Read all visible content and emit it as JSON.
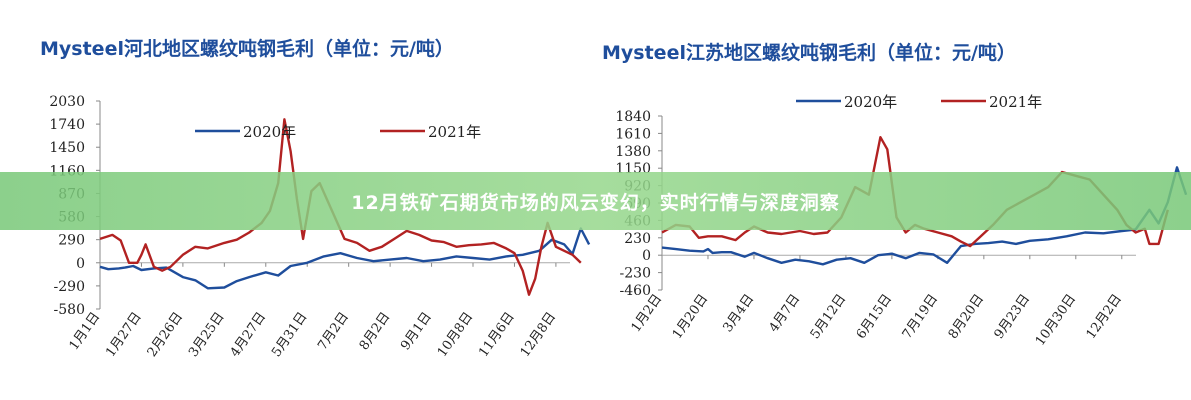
{
  "banner": {
    "text": "12月铁矿石期货市场的风云变幻，实时行情与深度洞察"
  },
  "chart_data": [
    {
      "type": "line",
      "title": "Mysteel河北地区螺纹吨钢毛利（单位：元/吨）",
      "yticks": [
        2030,
        1740,
        1450,
        1160,
        870,
        580,
        290,
        0,
        -290,
        -580
      ],
      "ylim": [
        -580,
        2030
      ],
      "xticks": [
        "1月1日",
        "1月27日",
        "2月26日",
        "3月25日",
        "4月27日",
        "5月31日",
        "7月2日",
        "8月2日",
        "9月1日",
        "10月8日",
        "11月6日",
        "12月8日"
      ],
      "legend_position": "top",
      "series": [
        {
          "name": "2020年",
          "color": "#1f4e9c",
          "x": [
            0,
            0.2,
            0.45,
            0.6,
            0.8,
            1,
            1.3,
            1.6,
            1.8,
            2,
            2.3,
            2.6,
            3,
            3.3,
            3.6,
            4,
            4.3,
            4.6,
            5,
            5.4,
            5.8,
            6.2,
            6.6,
            7,
            7.4,
            7.8,
            8.2,
            8.6,
            9,
            9.4,
            9.8,
            10.2,
            10.6,
            10.9,
            11.2,
            11.4,
            11.6,
            11.8
          ],
          "y": [
            -50,
            -80,
            -70,
            -60,
            -40,
            -90,
            -70,
            -60,
            -120,
            -180,
            -220,
            -320,
            -310,
            -230,
            -180,
            -120,
            -160,
            -40,
            0,
            80,
            120,
            60,
            20,
            40,
            60,
            20,
            40,
            80,
            60,
            40,
            80,
            100,
            150,
            290,
            230,
            110,
            430,
            230
          ]
        },
        {
          "name": "2021年",
          "color": "#b22222",
          "x": [
            0,
            0.3,
            0.5,
            0.7,
            0.9,
            1,
            1.1,
            1.3,
            1.5,
            1.7,
            2,
            2.3,
            2.6,
            3,
            3.3,
            3.6,
            3.9,
            4.1,
            4.3,
            4.45,
            4.6,
            4.75,
            4.9,
            5.1,
            5.3,
            5.6,
            5.9,
            6.2,
            6.5,
            6.8,
            7.1,
            7.4,
            7.7,
            8,
            8.3,
            8.6,
            8.9,
            9.2,
            9.5,
            9.8,
            10,
            10.2,
            10.35,
            10.5,
            10.65,
            10.8,
            11,
            11.2,
            11.4,
            11.6
          ],
          "y": [
            300,
            350,
            280,
            0,
            0,
            100,
            230,
            -50,
            -100,
            -50,
            100,
            200,
            180,
            250,
            290,
            380,
            500,
            650,
            1000,
            1800,
            1400,
            800,
            300,
            900,
            1000,
            650,
            300,
            250,
            150,
            200,
            300,
            400,
            350,
            280,
            260,
            200,
            220,
            230,
            250,
            180,
            120,
            -100,
            -400,
            -200,
            200,
            500,
            200,
            150,
            100,
            0
          ]
        }
      ]
    },
    {
      "type": "line",
      "title": "Mysteel江苏地区螺纹吨钢毛利（单位：元/吨）",
      "yticks": [
        1840,
        1610,
        1380,
        1150,
        920,
        690,
        460,
        230,
        0,
        -230,
        -460
      ],
      "ylim": [
        -460,
        1840
      ],
      "xticks": [
        "1月2日",
        "1月20日",
        "3月4日",
        "4月7日",
        "5月12日",
        "6月15日",
        "7月19日",
        "8月20日",
        "9月23日",
        "10月30日",
        "12月2日"
      ],
      "legend_position": "top",
      "series": [
        {
          "name": "2020年",
          "color": "#1f4e9c",
          "x": [
            0,
            0.3,
            0.6,
            0.9,
            1,
            1.1,
            1.3,
            1.5,
            1.8,
            2,
            2.3,
            2.6,
            2.9,
            3.2,
            3.5,
            3.8,
            4.1,
            4.4,
            4.7,
            5,
            5.3,
            5.6,
            5.9,
            6.2,
            6.5,
            6.8,
            7.1,
            7.4,
            7.7,
            8,
            8.4,
            8.8,
            9.2,
            9.6,
            10,
            10.3,
            10.6,
            10.8,
            11,
            11.2,
            11.4
          ],
          "y": [
            100,
            80,
            60,
            50,
            80,
            30,
            40,
            40,
            -20,
            30,
            -40,
            -100,
            -60,
            -80,
            -120,
            -60,
            -40,
            -100,
            0,
            20,
            -40,
            30,
            10,
            -100,
            120,
            150,
            160,
            180,
            150,
            190,
            210,
            250,
            300,
            290,
            320,
            340,
            600,
            420,
            700,
            1160,
            800
          ]
        },
        {
          "name": "2021年",
          "color": "#b22222",
          "x": [
            0,
            0.3,
            0.6,
            0.8,
            1,
            1.3,
            1.6,
            1.8,
            2,
            2.3,
            2.6,
            3,
            3.3,
            3.6,
            3.9,
            4.2,
            4.5,
            4.75,
            4.9,
            5.1,
            5.3,
            5.5,
            5.7,
            6,
            6.3,
            6.5,
            6.7,
            6.9,
            7.2,
            7.5,
            7.8,
            8.1,
            8.4,
            8.7,
            9,
            9.3,
            9.6,
            9.9,
            10.1,
            10.3,
            10.5,
            10.6,
            10.8,
            11
          ],
          "y": [
            300,
            400,
            380,
            230,
            250,
            250,
            200,
            300,
            380,
            300,
            280,
            320,
            280,
            300,
            500,
            900,
            800,
            1560,
            1400,
            500,
            300,
            400,
            350,
            300,
            250,
            180,
            120,
            230,
            400,
            600,
            700,
            800,
            900,
            1100,
            1050,
            1000,
            800,
            600,
            400,
            300,
            350,
            150,
            150,
            600
          ]
        }
      ]
    }
  ]
}
